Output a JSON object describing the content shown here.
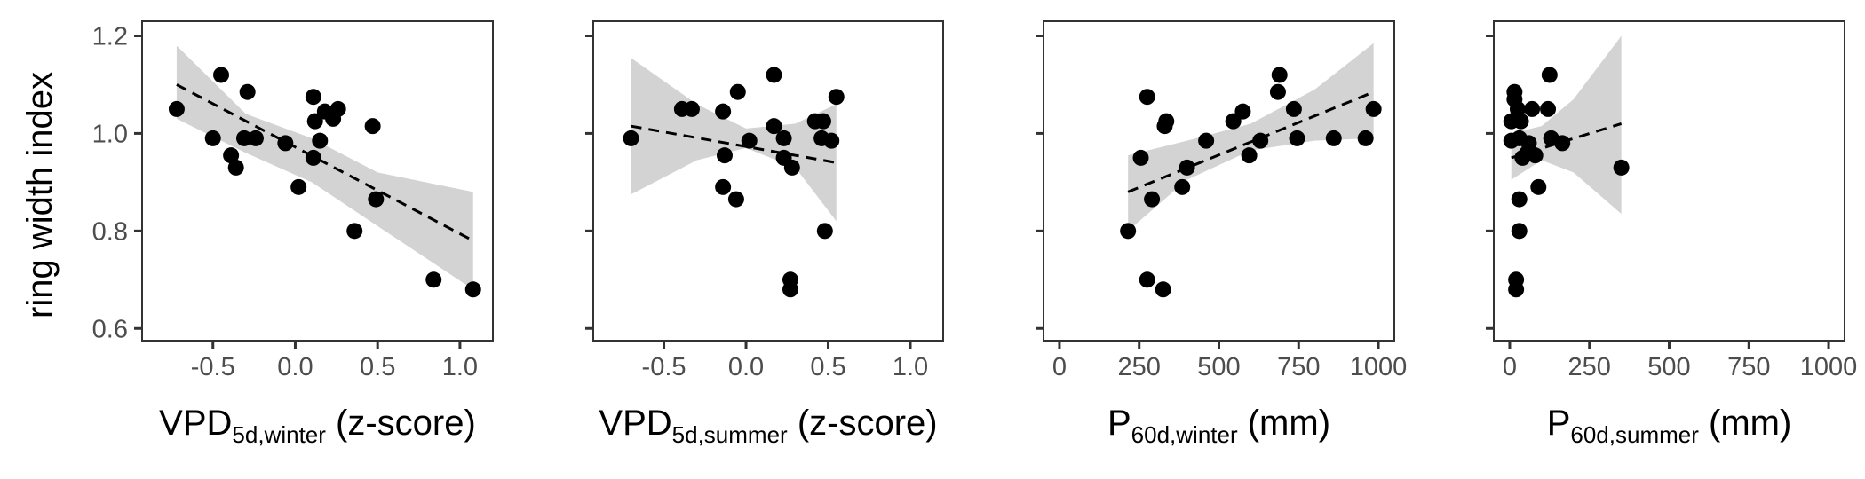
{
  "figure": {
    "y_axis_label": "ring width index",
    "colors": {
      "points": "#000000",
      "ribbon": "#d3d3d3",
      "trend": "#000000",
      "frame": "#333333",
      "tick_text": "#4d4d4d"
    }
  },
  "chart_data": [
    {
      "type": "scatter",
      "xlabel": {
        "base": "VPD",
        "sub": "5d,winter",
        "suffix": " (z-score)"
      },
      "ylabel": "ring width index",
      "xlim": [
        -0.93,
        1.2
      ],
      "ylim": [
        0.575,
        1.23
      ],
      "xticks": [
        -0.5,
        0.0,
        0.5,
        1.0
      ],
      "xtick_labels": [
        "-0.5",
        "0.0",
        "0.5",
        "1.0"
      ],
      "yticks": [
        0.6,
        0.8,
        1.0,
        1.2
      ],
      "ytick_labels": [
        "0.6",
        "0.8",
        "1.0",
        "1.2"
      ],
      "show_ytick_labels": true,
      "grid": false,
      "points": [
        [
          -0.72,
          1.05
        ],
        [
          -0.45,
          1.12
        ],
        [
          -0.29,
          1.085
        ],
        [
          -0.5,
          0.99
        ],
        [
          -0.39,
          0.955
        ],
        [
          -0.36,
          0.93
        ],
        [
          -0.31,
          0.99
        ],
        [
          -0.24,
          0.99
        ],
        [
          -0.06,
          0.98
        ],
        [
          0.02,
          0.89
        ],
        [
          0.11,
          0.95
        ],
        [
          0.11,
          1.075
        ],
        [
          0.12,
          1.025
        ],
        [
          0.15,
          0.985
        ],
        [
          0.18,
          1.045
        ],
        [
          0.23,
          1.03
        ],
        [
          0.26,
          1.05
        ],
        [
          0.47,
          1.015
        ],
        [
          0.49,
          0.865
        ],
        [
          0.36,
          0.8
        ],
        [
          0.84,
          0.7
        ],
        [
          1.08,
          0.68
        ]
      ],
      "trend": {
        "x": [
          -0.72,
          1.08
        ],
        "y": [
          1.1,
          0.78
        ]
      },
      "ribbon": {
        "x": [
          -0.72,
          -0.3,
          0.1,
          0.5,
          1.08
        ],
        "lower": [
          1.03,
          0.96,
          0.9,
          0.81,
          0.68
        ],
        "upper": [
          1.18,
          1.04,
          0.99,
          0.92,
          0.88
        ]
      }
    },
    {
      "type": "scatter",
      "xlabel": {
        "base": "VPD",
        "sub": "5d,summer",
        "suffix": " (z-score)"
      },
      "ylabel": "",
      "xlim": [
        -0.93,
        1.2
      ],
      "ylim": [
        0.575,
        1.23
      ],
      "xticks": [
        -0.5,
        0.0,
        0.5,
        1.0
      ],
      "xtick_labels": [
        "-0.5",
        "0.0",
        "0.5",
        "1.0"
      ],
      "yticks": [
        0.6,
        0.8,
        1.0,
        1.2
      ],
      "ytick_labels": [
        "0.6",
        "0.8",
        "1.0",
        "1.2"
      ],
      "show_ytick_labels": false,
      "grid": false,
      "points": [
        [
          -0.7,
          0.99
        ],
        [
          -0.39,
          1.05
        ],
        [
          -0.33,
          1.05
        ],
        [
          -0.14,
          1.045
        ],
        [
          -0.14,
          0.89
        ],
        [
          -0.13,
          0.955
        ],
        [
          -0.05,
          1.085
        ],
        [
          -0.06,
          0.865
        ],
        [
          0.02,
          0.985
        ],
        [
          0.17,
          1.12
        ],
        [
          0.17,
          1.015
        ],
        [
          0.23,
          0.99
        ],
        [
          0.23,
          0.95
        ],
        [
          0.28,
          0.93
        ],
        [
          0.42,
          1.025
        ],
        [
          0.47,
          1.025
        ],
        [
          0.46,
          0.99
        ],
        [
          0.52,
          0.985
        ],
        [
          0.55,
          1.075
        ],
        [
          0.48,
          0.8
        ],
        [
          0.27,
          0.7
        ],
        [
          0.27,
          0.68
        ]
      ],
      "trend": {
        "x": [
          -0.7,
          0.55
        ],
        "y": [
          1.015,
          0.94
        ]
      },
      "ribbon": {
        "x": [
          -0.7,
          -0.3,
          0.0,
          0.3,
          0.55
        ],
        "lower": [
          0.875,
          0.945,
          0.97,
          0.93,
          0.82
        ],
        "upper": [
          1.155,
          1.06,
          1.01,
          1.02,
          1.06
        ]
      }
    },
    {
      "type": "scatter",
      "xlabel": {
        "base": "P",
        "sub": "60d,winter",
        "suffix": " (mm)"
      },
      "ylabel": "",
      "xlim": [
        -50,
        1050
      ],
      "ylim": [
        0.575,
        1.23
      ],
      "xticks": [
        0,
        250,
        500,
        750,
        1000
      ],
      "xtick_labels": [
        "0",
        "250",
        "500",
        "750",
        "1000"
      ],
      "yticks": [
        0.6,
        0.8,
        1.0,
        1.2
      ],
      "ytick_labels": [
        "0.6",
        "0.8",
        "1.0",
        "1.2"
      ],
      "show_ytick_labels": false,
      "grid": false,
      "points": [
        [
          215,
          0.8
        ],
        [
          255,
          0.95
        ],
        [
          275,
          1.075
        ],
        [
          290,
          0.865
        ],
        [
          330,
          1.015
        ],
        [
          335,
          1.025
        ],
        [
          385,
          0.89
        ],
        [
          400,
          0.93
        ],
        [
          460,
          0.985
        ],
        [
          545,
          1.025
        ],
        [
          575,
          1.045
        ],
        [
          595,
          0.955
        ],
        [
          630,
          0.985
        ],
        [
          685,
          1.085
        ],
        [
          690,
          1.12
        ],
        [
          735,
          1.05
        ],
        [
          745,
          0.99
        ],
        [
          860,
          0.99
        ],
        [
          960,
          0.99
        ],
        [
          985,
          1.05
        ],
        [
          275,
          0.7
        ],
        [
          325,
          0.68
        ]
      ],
      "trend": {
        "x": [
          215,
          985
        ],
        "y": [
          0.88,
          1.085
        ]
      },
      "ribbon": {
        "x": [
          215,
          400,
          600,
          800,
          985
        ],
        "lower": [
          0.8,
          0.905,
          0.965,
          0.985,
          0.99
        ],
        "upper": [
          0.955,
          0.985,
          1.02,
          1.09,
          1.185
        ]
      }
    },
    {
      "type": "scatter",
      "xlabel": {
        "base": "P",
        "sub": "60d,summer",
        "suffix": " (mm)"
      },
      "ylabel": "",
      "xlim": [
        -50,
        1050
      ],
      "ylim": [
        0.575,
        1.23
      ],
      "xticks": [
        0,
        250,
        500,
        750,
        1000
      ],
      "xtick_labels": [
        "0",
        "250",
        "500",
        "750",
        "1000"
      ],
      "yticks": [
        0.6,
        0.8,
        1.0,
        1.2
      ],
      "ytick_labels": [
        "0.6",
        "0.8",
        "1.0",
        "1.2"
      ],
      "show_ytick_labels": false,
      "grid": false,
      "points": [
        [
          5,
          1.025
        ],
        [
          5,
          0.985
        ],
        [
          15,
          1.085
        ],
        [
          15,
          1.07
        ],
        [
          25,
          1.05
        ],
        [
          30,
          0.99
        ],
        [
          35,
          1.025
        ],
        [
          40,
          0.95
        ],
        [
          60,
          0.98
        ],
        [
          70,
          1.05
        ],
        [
          80,
          0.955
        ],
        [
          90,
          0.89
        ],
        [
          120,
          1.05
        ],
        [
          125,
          1.12
        ],
        [
          130,
          0.99
        ],
        [
          165,
          0.98
        ],
        [
          350,
          0.93
        ],
        [
          30,
          0.865
        ],
        [
          30,
          0.8
        ],
        [
          20,
          0.7
        ],
        [
          20,
          0.68
        ],
        [
          55,
          0.96
        ]
      ],
      "trend": {
        "x": [
          5,
          350
        ],
        "y": [
          0.95,
          1.02
        ]
      },
      "ribbon": {
        "x": [
          5,
          100,
          200,
          350
        ],
        "lower": [
          0.905,
          0.945,
          0.92,
          0.835
        ],
        "upper": [
          1.0,
          1.015,
          1.07,
          1.2
        ]
      }
    }
  ]
}
